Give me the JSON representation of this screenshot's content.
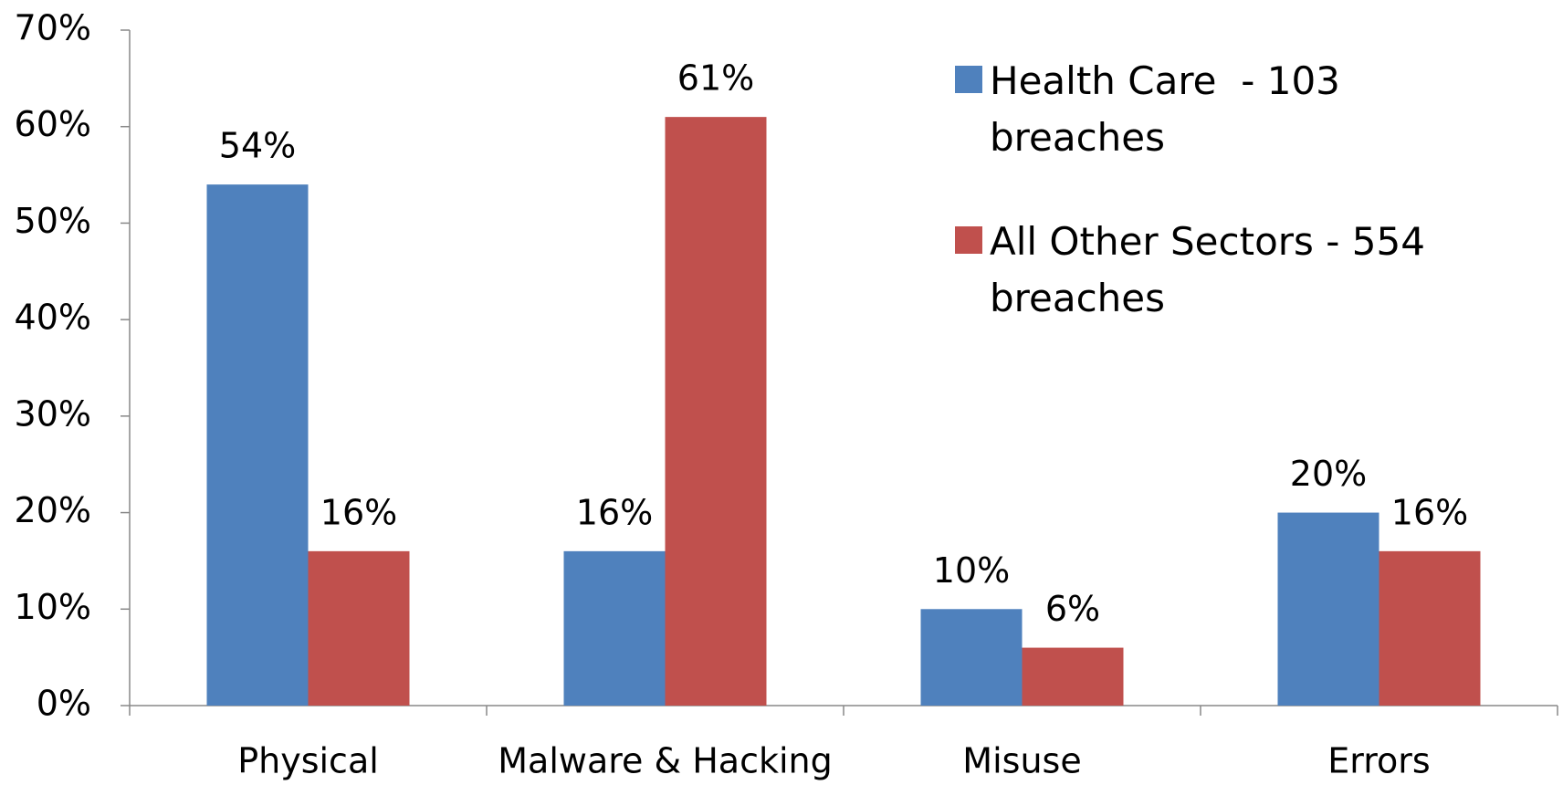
{
  "chart_data": {
    "type": "bar",
    "categories": [
      "Physical",
      "Malware & Hacking",
      "Misuse",
      "Errors"
    ],
    "series": [
      {
        "name": "Health Care  - 103 breaches",
        "color": "#4f81bd",
        "values": [
          54,
          16,
          10,
          20
        ],
        "value_labels": [
          "54%",
          "16%",
          "10%",
          "20%"
        ]
      },
      {
        "name": "All Other Sectors - 554 breaches",
        "color": "#c0504d",
        "values": [
          16,
          61,
          6,
          16
        ],
        "value_labels": [
          "16%",
          "61%",
          "6%",
          "16%"
        ]
      }
    ],
    "ylim": [
      0,
      70
    ],
    "yticks": [
      {
        "value": 0,
        "label": "0%"
      },
      {
        "value": 10,
        "label": "10%"
      },
      {
        "value": 20,
        "label": "20%"
      },
      {
        "value": 30,
        "label": "30%"
      },
      {
        "value": 40,
        "label": "40%"
      },
      {
        "value": 50,
        "label": "50%"
      },
      {
        "value": 60,
        "label": "60%"
      },
      {
        "value": 70,
        "label": "70%"
      }
    ],
    "grid": false,
    "legend": "upper right"
  }
}
